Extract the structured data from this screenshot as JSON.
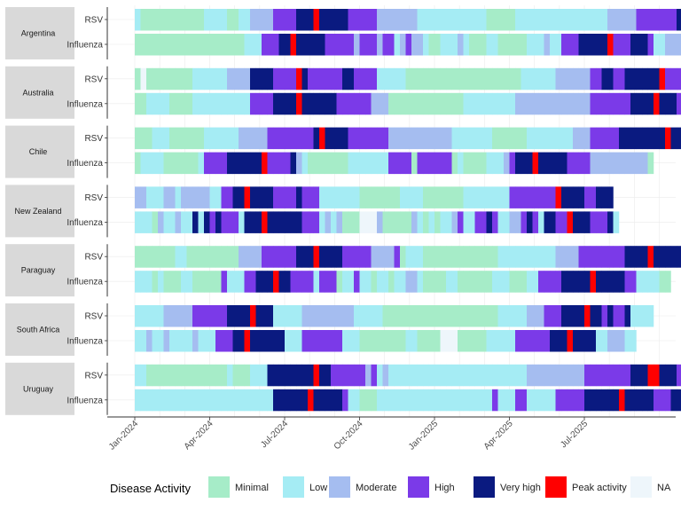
{
  "chart_data": {
    "type": "heatmap",
    "title": "",
    "xlabel": "",
    "ylabel": "",
    "x_ticks": [
      "Jan-2024",
      "Apr-2024",
      "Jul-2024",
      "Oct-2024",
      "Jan-2025",
      "Apr-2025",
      "Jul-2025"
    ],
    "x_range": [
      "2024-01",
      "2025-09"
    ],
    "week_step": 1,
    "categories": [
      "Minimal",
      "Low",
      "Moderate",
      "High",
      "Very high",
      "Peak activity",
      "NA"
    ],
    "colors": {
      "Minimal": "#a6ecc8",
      "Low": "#a5ecf4",
      "Moderate": "#a5bdf0",
      "High": "#7b3ae8",
      "Very high": "#0a1a80",
      "Peak activity": "#ff0000",
      "NA": "#eef6fb",
      "Blank": "#ffffff"
    },
    "legend": {
      "title": "Disease Activity",
      "position": "bottom",
      "items": [
        "Minimal",
        "Low",
        "Moderate",
        "High",
        "Very high",
        "Peak activity",
        "NA"
      ]
    },
    "code_key": {
      "m": "Minimal",
      "l": "Low",
      "o": "Moderate",
      "h": "High",
      "v": "Very high",
      "p": "Peak activity",
      "n": "NA",
      ".": "Blank"
    },
    "series": [
      {
        "country": "Argentina",
        "pathogen": "RSV",
        "weekly": "lmmmmmmmmmmmllllmmlloooohhhhvvvpvvvvvhhhhhooooooollllllllllllmmmmmllllllllllllllllooooohhhhhhhvvvpvvvhv."
      },
      {
        "country": "Argentina",
        "pathogen": "Influenza",
        "weekly": "mmmmmmmmmmmmmmmmmmmlllhhhvvpvvvvvhhhhhohhhohhlohoolmmlllolmmmllmmmmmlllollhhhvvvvvphhhvvvhlloooo......"
      },
      {
        "country": "Australia",
        "pathogen": "RSV",
        "weekly": "mnmmmmmmmmlllllloooovvvvhhhhpvhhhhhhvvhhhhlllllmmmmmmmmmmmmmmmmmmmmlllllloooooohhvvhhvvvvvvphhhooooooo"
      },
      {
        "country": "Australia",
        "pathogen": "Influenza",
        "weekly": "mmllllmmmmllllllllllhhhhvvvvpvvvvvvhhhhhhooommmmmmmmmmmmmlllllllllooooooooooooohhhhhhhvvvvpvvvhhn"
      },
      {
        "country": "Chile",
        "pathogen": "RSV",
        "weekly": "mmmlllmmmmmmllllllooooohhhhhhhhvpvvvvhhhhhhhooooooooooolllllllmmmmmmllllllllooohhhhhvvvvvvvvpvvvm"
      },
      {
        "country": "Chile",
        "pathogen": "Influenza",
        "weekly": "mllllmmmmmmlhhhhvvvvvvphhhhvolmmmmmmmlllllllhhhhmhhhhhhmlmmmmlllohvvvpvvvvvhhhhoooooooooom"
      },
      {
        "country": "New Zealand",
        "pathogen": "RSV",
        "weekly": "oollloolooooollhhvvpvvvvhhhhvhhhlllllllmmmmmmmllllmmmmmmmllllllllhhhhhhhhpvvvvhhvvv"
      },
      {
        "country": "New Zealand",
        "pathogen": "Influenza",
        "weekly": "lllmollollvlvhvhhhlvvvpvvvvvvhhhlolommmnnnommmmmolmlmllohllhhvhlloohvhlvvhhpvvvhhhvl"
      },
      {
        "country": "Paraguay",
        "pathogen": "RSV",
        "weekly": "mmmmmmmllmmmmmmmmmoooohhhhhhvvvpvvvvhhhhhoooohmlllmmmmmmmmmmmmmlllllllllloooohhhhhhhhvvvvpvvvvvvhholm"
      },
      {
        "country": "Paraguay",
        "pathogen": "Influenza",
        "weekly": "lllmlmmmllmmmmmhlllhhvvvpvvhhhhlhhhmllhllmllmlloolmmmmllmmmmmmlllmmmllhhhhvvvvvpvvvvvhhllllmm"
      },
      {
        "country": "South Africa",
        "pathogen": "RSV",
        "weekly": "lllllooooohhhhhhvvvvpvvvlllllooooooooolllllmmmmmmmmmmmmmmmmmmmmlllllooohhhvvvvpvvhvhhvllll"
      },
      {
        "country": "South Africa",
        "pathogen": "Influenza",
        "weekly": "llollollllolllhhhvvpvvvvvvlllhhhhhhhlllmmmmmmmmllmmmmnnnmmmmmlllllhhhhhhvvvpvvvvlloooll"
      },
      {
        "country": "Uruguay",
        "pathogen": "RSV",
        "weekly": "llmmmmmmmmmmmmmmlmmmlllvvvvvvvvpvvhhhhhhohlolllllllllllllllllllllllloooooooooohhhhhhhhvvvppvvvh"
      },
      {
        "country": "Uruguay",
        "pathogen": "Influenza",
        "weekly": "llllllllllllllllllllllllvvvvvvpvvvvvhllmmmllllllllllllllllllllhlllhhlllllhhhhhvvvvvvpvvvvvhhhvvh"
      }
    ]
  }
}
